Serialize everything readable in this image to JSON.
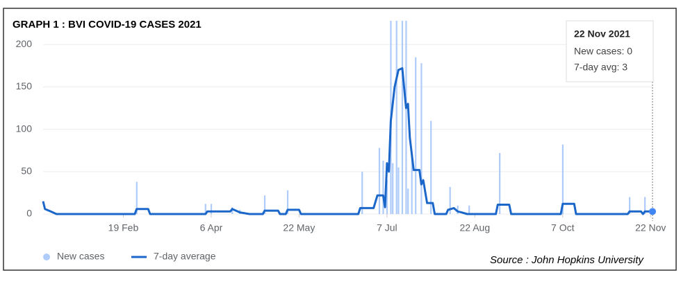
{
  "chart_data": {
    "type": "combo",
    "title": "GRAPH 1 : BVI COVID-19 CASES 2021",
    "source": "Source : John Hopkins University",
    "xlim": [
      8,
      327
    ],
    "ylim": [
      0,
      228
    ],
    "yticks": [
      0,
      50,
      100,
      150,
      200
    ],
    "grid": true,
    "xticks": [
      {
        "value": 50,
        "label": "19 Feb"
      },
      {
        "value": 96,
        "label": "6 Apr"
      },
      {
        "value": 142,
        "label": "22 May"
      },
      {
        "value": 188,
        "label": "7 Jul"
      },
      {
        "value": 234,
        "label": "22 Aug"
      },
      {
        "value": 280,
        "label": "7 Oct"
      },
      {
        "value": 326,
        "label": "22 Nov"
      }
    ],
    "series": [
      {
        "name": "New cases",
        "type": "bar",
        "color": "#aecbfa",
        "x": [
          57,
          93,
          96,
          107,
          111,
          124,
          136,
          175,
          184,
          186,
          188,
          190,
          191,
          193,
          194,
          196,
          198,
          199,
          201,
          203,
          206,
          211,
          221,
          225,
          231,
          247,
          280,
          315,
          323
        ],
        "values": [
          38,
          12,
          12,
          8,
          5,
          22,
          28,
          50,
          78,
          63,
          40,
          230,
          60,
          230,
          55,
          230,
          230,
          30,
          70,
          185,
          178,
          110,
          32,
          10,
          10,
          72,
          82,
          20,
          20
        ]
      },
      {
        "name": "7-day average",
        "type": "line",
        "color": "#1a66c9",
        "x": [
          8,
          9,
          12,
          15,
          56,
          57,
          63,
          64,
          93,
          94,
          106,
          107,
          111,
          116,
          123,
          124,
          131,
          132,
          135,
          136,
          142,
          143,
          173,
          174,
          181,
          183,
          186,
          187,
          188,
          189,
          190,
          192,
          194,
          196,
          198,
          199,
          200,
          202,
          205,
          206,
          207,
          209,
          212,
          213,
          219,
          220,
          223,
          225,
          227,
          230,
          245,
          246,
          252,
          253,
          279,
          280,
          286,
          287,
          314,
          315,
          321,
          322,
          323,
          327
        ],
        "values": [
          15,
          6,
          3,
          0,
          0,
          6,
          6,
          0,
          0,
          3,
          3,
          6,
          2,
          0,
          0,
          4,
          4,
          0,
          0,
          5,
          5,
          0,
          0,
          7,
          7,
          22,
          22,
          8,
          60,
          50,
          110,
          150,
          170,
          172,
          125,
          130,
          90,
          52,
          52,
          35,
          40,
          13,
          13,
          0,
          0,
          5,
          7,
          3,
          2,
          0,
          0,
          11,
          11,
          0,
          0,
          12,
          12,
          0,
          0,
          3,
          3,
          0,
          3,
          3
        ]
      }
    ],
    "tooltip": {
      "title": "22 Nov 2021",
      "lines": [
        "New cases: 0",
        "7-day avg: 3"
      ]
    }
  }
}
